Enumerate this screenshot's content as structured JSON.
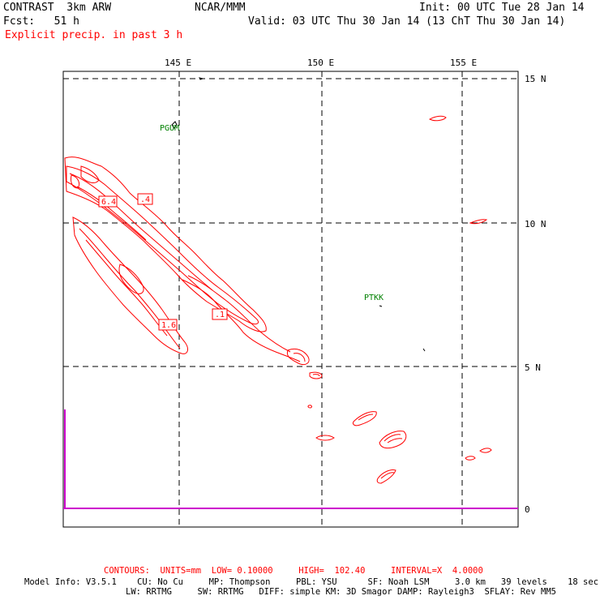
{
  "header": {
    "model_title": "CONTRAST  3km ARW",
    "org": "NCAR/MMM",
    "init": "Init: 00 UTC Tue 28 Jan 14",
    "fcst": "Fcst:   51 h",
    "valid": "Valid: 03 UTC Thu 30 Jan 14 (13 ChT Thu 30 Jan 14)",
    "field": "Explicit precip. in past 3 h"
  },
  "map": {
    "lon_labels": [
      "145 E",
      "150 E",
      "155 E"
    ],
    "lat_labels": [
      "15 N",
      "10 N",
      "5 N",
      "0"
    ],
    "stations": [
      {
        "id": "PGUM",
        "lon": 144.8,
        "lat": 13.5
      },
      {
        "id": "PTKK",
        "lon": 151.85,
        "lat": 7.45
      }
    ],
    "contour_labels": [
      "6.4",
      ".4",
      ".1",
      "1.6"
    ],
    "contour_color": "#ff0000",
    "graticule_color": "#000000",
    "axis_color": "#cc00cc"
  },
  "footer": {
    "contours": "CONTOURS:  UNITS=mm  LOW= 0.10000     HIGH=  102.40     INTERVAL=X  4.0000",
    "model_info_1": "Model Info: V3.5.1    CU: No Cu     MP: Thompson     PBL: YSU      SF: Noah LSM     3.0 km   39 levels    18 sec",
    "model_info_2": "LW: RRTMG     SW: RRTMG   DIFF: simple KM: 3D Smagor DAMP: Rayleigh3  SFLAY: Rev MM5"
  }
}
